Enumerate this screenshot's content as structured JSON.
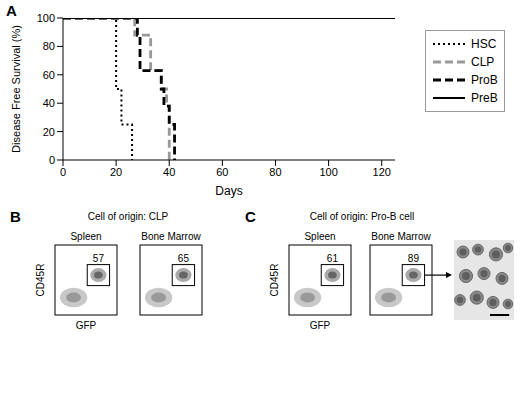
{
  "figure_labels": [
    "A",
    "B",
    "C"
  ],
  "chart_data": {
    "type": "line",
    "x_label": "Days",
    "y_label": "Disease Free Survival (%)",
    "x": [
      0,
      20,
      22,
      26,
      27,
      28,
      29,
      33,
      37,
      38,
      39,
      40,
      41,
      42,
      125
    ],
    "series": [
      {
        "name": "HSC",
        "color": "#000000",
        "line_style": "dotted",
        "values": [
          100,
          50,
          25,
          0,
          null,
          null,
          null,
          null,
          null,
          null,
          null,
          null,
          null,
          null,
          null
        ]
      },
      {
        "name": "CLP",
        "color": "#999999",
        "line_style": "dashed",
        "values": [
          100,
          100,
          100,
          100,
          88,
          88,
          88,
          63,
          50,
          50,
          38,
          0,
          null,
          null,
          null
        ]
      },
      {
        "name": "ProB",
        "color": "#000000",
        "line_style": "dashed",
        "values": [
          100,
          100,
          100,
          100,
          100,
          88,
          63,
          63,
          50,
          38,
          38,
          25,
          25,
          0,
          null
        ]
      },
      {
        "name": "PreB",
        "color": "#000000",
        "line_style": "solid",
        "values": [
          100,
          100,
          100,
          100,
          100,
          100,
          100,
          100,
          100,
          100,
          100,
          100,
          100,
          100,
          100
        ]
      }
    ],
    "xlim": [
      0,
      125
    ],
    "xticks": [
      0,
      20,
      40,
      60,
      80,
      100,
      120
    ],
    "ylim": [
      0,
      100
    ],
    "yticks": [
      0,
      20,
      40,
      60,
      80,
      100
    ],
    "grid": false,
    "legend": "right"
  },
  "flow_panels": [
    {
      "title": "Cell of origin: CLP",
      "y_label": "CD45R",
      "x_label": "GFP",
      "plots": [
        {
          "tissue": "Spleen",
          "gate_percent": 57
        },
        {
          "tissue": "Bone Marrow",
          "gate_percent": 65
        }
      ]
    },
    {
      "title": "Cell of origin: Pro-B cell",
      "y_label": "CD45R",
      "x_label": "GFP",
      "plots": [
        {
          "tissue": "Spleen",
          "gate_percent": 61
        },
        {
          "tissue": "Bone Marrow",
          "gate_percent": 89
        }
      ]
    }
  ]
}
